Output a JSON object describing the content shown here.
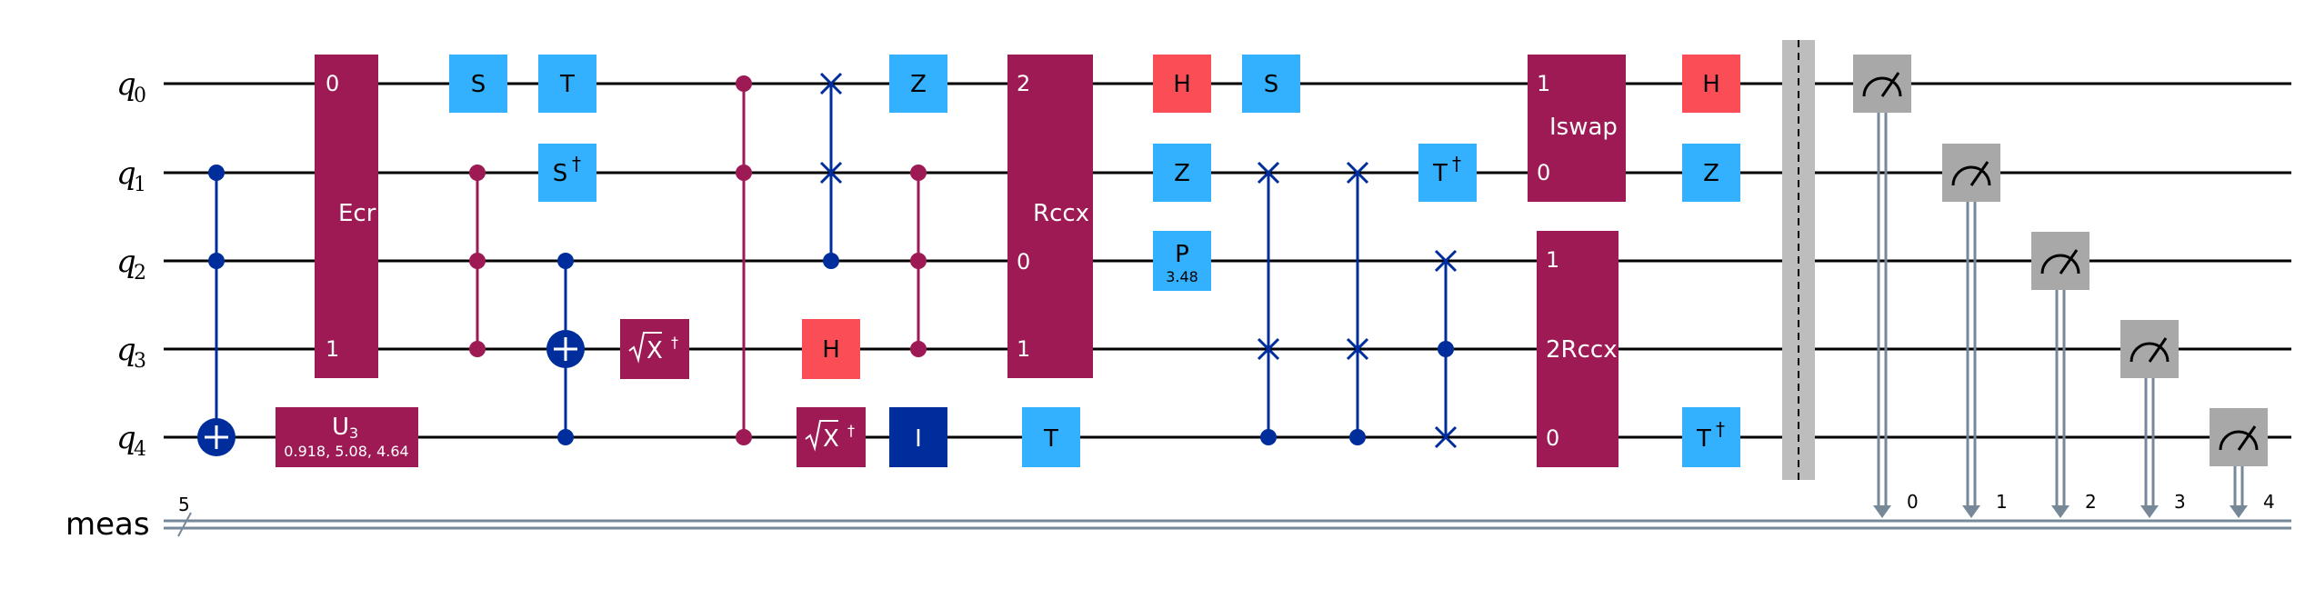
{
  "circuit": {
    "qubits": [
      {
        "name": "q",
        "index": "0"
      },
      {
        "name": "q",
        "index": "1"
      },
      {
        "name": "q",
        "index": "2"
      },
      {
        "name": "q",
        "index": "3"
      },
      {
        "name": "q",
        "index": "4"
      }
    ],
    "classical_register": {
      "name": "meas",
      "width": "5"
    },
    "colors": {
      "multi_gate": "#9e1a55",
      "clifford": "#33b1ff",
      "hadamard": "#fa4d56",
      "control": "#002d9c",
      "measure": "#a8a8a8",
      "barrier": "#bdbdbd",
      "classical_wire": "#778899"
    },
    "gates": {
      "ecr": {
        "label": "Ecr",
        "ports": [
          "0",
          "1"
        ]
      },
      "u3": {
        "label": "U",
        "sub": "3",
        "params": "0.918, 5.08, 4.64"
      },
      "s_q0": {
        "label": "S"
      },
      "t_q0": {
        "label": "T"
      },
      "sdg_q1": {
        "label": "S",
        "sup": "†"
      },
      "sxdg_q3": {
        "label": "X",
        "sup": "†"
      },
      "z_q0": {
        "label": "Z"
      },
      "h_q3": {
        "label": "H"
      },
      "sxdg_q4": {
        "label": "X",
        "sup": "†"
      },
      "id_q4": {
        "label": "I"
      },
      "rccx": {
        "label": "Rccx",
        "ports": [
          "2",
          "0",
          "1"
        ]
      },
      "t_q4": {
        "label": "T"
      },
      "h_q0": {
        "label": "H"
      },
      "z_q1": {
        "label": "Z"
      },
      "p_q2": {
        "label": "P",
        "param": "3.48"
      },
      "s2_q0": {
        "label": "S"
      },
      "tdg_q1": {
        "label": "T",
        "sup": "†"
      },
      "iswap": {
        "label": "Iswap",
        "ports": [
          "1",
          "0"
        ]
      },
      "rccx2": {
        "label": "2Rccx",
        "ports": [
          "1",
          "2Rccx",
          "0"
        ]
      },
      "h2_q0": {
        "label": "H"
      },
      "z2_q1": {
        "label": "Z"
      },
      "tdg_q4": {
        "label": "T",
        "sup": "†"
      }
    },
    "measurements": [
      {
        "qubit": 0,
        "bit": "0"
      },
      {
        "qubit": 1,
        "bit": "1"
      },
      {
        "qubit": 2,
        "bit": "2"
      },
      {
        "qubit": 3,
        "bit": "3"
      },
      {
        "qubit": 4,
        "bit": "4"
      }
    ]
  }
}
